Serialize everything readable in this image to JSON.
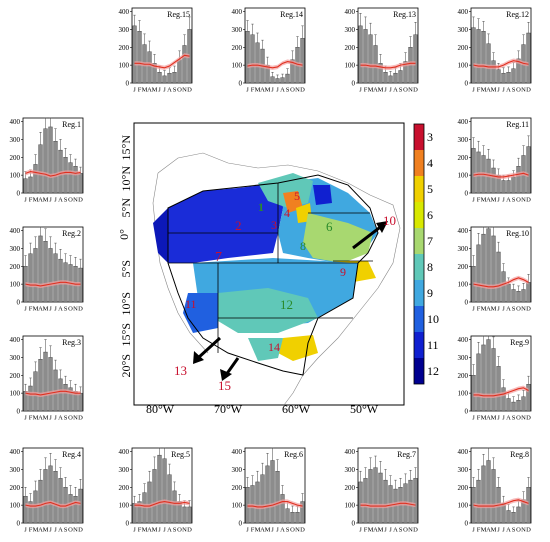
{
  "figure": {
    "axes": {
      "month_ticks": [
        "J",
        "F",
        "M",
        "A",
        "M",
        "J",
        "J",
        "A",
        "S",
        "O",
        "N",
        "D"
      ],
      "y_ticks": [
        "0",
        "100",
        "200",
        "300",
        "400"
      ],
      "ylim": [
        0,
        420
      ]
    },
    "colors": {
      "bar": "#8c8c8c",
      "bar_stroke": "#333333",
      "error": "#444444",
      "line": "#e03020",
      "band": "#f4a0a0"
    },
    "map": {
      "lat_labels": [
        "15°N",
        "10°N",
        "5°N",
        "0°",
        "5°S",
        "10°S",
        "15°S",
        "20°S"
      ],
      "lon_labels": [
        "80°W",
        "70°W",
        "60°W",
        "50°W"
      ],
      "region_numbers": [
        "1",
        "2",
        "3",
        "4",
        "5",
        "6",
        "7",
        "8",
        "9",
        "10",
        "11",
        "12",
        "13",
        "14",
        "15"
      ],
      "colorbar": {
        "labels": [
          "3",
          "4",
          "5",
          "6",
          "7",
          "8",
          "9",
          "10",
          "11",
          "12"
        ],
        "colors": [
          "#c8102e",
          "#f08020",
          "#f0d000",
          "#d8e800",
          "#a8d870",
          "#60c8b8",
          "#40a8e0",
          "#2060e0",
          "#1020d0",
          "#000090"
        ]
      }
    }
  },
  "chart_data": [
    {
      "type": "bar",
      "title": "Reg.15",
      "categories": [
        "J",
        "F",
        "M",
        "A",
        "M",
        "J",
        "J",
        "A",
        "S",
        "O",
        "N",
        "D"
      ],
      "values": [
        320,
        290,
        215,
        175,
        110,
        60,
        40,
        55,
        60,
        130,
        210,
        300
      ],
      "errors": [
        60,
        60,
        60,
        60,
        50,
        35,
        30,
        30,
        35,
        50,
        60,
        70
      ],
      "line": [
        110,
        110,
        105,
        105,
        95,
        90,
        85,
        95,
        115,
        135,
        155,
        150
      ],
      "ylim": [
        0,
        420
      ]
    },
    {
      "type": "bar",
      "title": "Reg.14",
      "categories": [
        "J",
        "F",
        "M",
        "A",
        "M",
        "J",
        "J",
        "A",
        "S",
        "O",
        "N",
        "D"
      ],
      "values": [
        290,
        270,
        225,
        190,
        100,
        35,
        25,
        30,
        50,
        130,
        200,
        250
      ],
      "errors": [
        60,
        60,
        55,
        50,
        45,
        25,
        20,
        20,
        30,
        50,
        60,
        70
      ],
      "line": [
        95,
        100,
        100,
        95,
        90,
        85,
        90,
        110,
        120,
        115,
        105,
        100
      ],
      "ylim": [
        0,
        420
      ]
    },
    {
      "type": "bar",
      "title": "Reg.13",
      "categories": [
        "J",
        "F",
        "M",
        "A",
        "M",
        "J",
        "J",
        "A",
        "S",
        "O",
        "N",
        "D"
      ],
      "values": [
        320,
        300,
        270,
        210,
        110,
        60,
        40,
        55,
        70,
        120,
        200,
        270
      ],
      "errors": [
        70,
        70,
        65,
        60,
        50,
        35,
        25,
        30,
        40,
        50,
        60,
        70
      ],
      "line": [
        100,
        100,
        95,
        95,
        90,
        85,
        85,
        90,
        100,
        105,
        110,
        110
      ],
      "ylim": [
        0,
        420
      ]
    },
    {
      "type": "bar",
      "title": "Reg.12",
      "categories": [
        "J",
        "F",
        "M",
        "A",
        "M",
        "J",
        "J",
        "A",
        "S",
        "O",
        "N",
        "D"
      ],
      "values": [
        310,
        300,
        290,
        220,
        125,
        75,
        55,
        60,
        80,
        135,
        215,
        280
      ],
      "errors": [
        60,
        60,
        55,
        55,
        45,
        35,
        30,
        30,
        35,
        45,
        55,
        60
      ],
      "line": [
        100,
        95,
        95,
        90,
        90,
        90,
        100,
        115,
        125,
        120,
        110,
        105
      ],
      "ylim": [
        0,
        420
      ]
    },
    {
      "type": "bar",
      "title": "Reg.1",
      "categories": [
        "J",
        "F",
        "M",
        "A",
        "M",
        "J",
        "J",
        "A",
        "S",
        "O",
        "N",
        "D"
      ],
      "values": [
        80,
        90,
        160,
        270,
        360,
        370,
        290,
        240,
        200,
        170,
        150,
        110
      ],
      "errors": [
        40,
        40,
        55,
        70,
        80,
        80,
        70,
        60,
        50,
        45,
        40,
        35
      ],
      "line": [
        110,
        120,
        115,
        110,
        105,
        95,
        100,
        110,
        115,
        115,
        110,
        115
      ],
      "ylim": [
        0,
        420
      ]
    },
    {
      "type": "bar",
      "title": "Reg.11",
      "categories": [
        "J",
        "F",
        "M",
        "A",
        "M",
        "J",
        "J",
        "A",
        "S",
        "O",
        "N",
        "D"
      ],
      "values": [
        250,
        230,
        210,
        190,
        140,
        100,
        70,
        70,
        90,
        150,
        210,
        260
      ],
      "errors": [
        60,
        60,
        55,
        55,
        45,
        35,
        30,
        30,
        35,
        45,
        55,
        60
      ],
      "line": [
        100,
        105,
        105,
        100,
        95,
        90,
        90,
        95,
        100,
        105,
        110,
        100
      ],
      "ylim": [
        0,
        420
      ]
    },
    {
      "type": "bar",
      "title": "Reg.2",
      "categories": [
        "J",
        "F",
        "M",
        "A",
        "M",
        "J",
        "J",
        "A",
        "S",
        "O",
        "N",
        "D"
      ],
      "values": [
        200,
        270,
        300,
        370,
        340,
        300,
        270,
        240,
        220,
        210,
        200,
        190
      ],
      "errors": [
        60,
        60,
        65,
        70,
        70,
        65,
        60,
        55,
        50,
        50,
        50,
        50
      ],
      "line": [
        100,
        95,
        95,
        90,
        95,
        100,
        105,
        110,
        110,
        105,
        100,
        100
      ],
      "ylim": [
        0,
        420
      ]
    },
    {
      "type": "bar",
      "title": "Reg.10",
      "categories": [
        "J",
        "F",
        "M",
        "A",
        "M",
        "J",
        "J",
        "A",
        "S",
        "O",
        "N",
        "D"
      ],
      "values": [
        200,
        320,
        380,
        410,
        370,
        280,
        170,
        100,
        70,
        60,
        70,
        110
      ],
      "errors": [
        60,
        65,
        70,
        70,
        65,
        55,
        45,
        35,
        30,
        30,
        35,
        45
      ],
      "line": [
        100,
        95,
        90,
        85,
        85,
        90,
        100,
        110,
        125,
        135,
        125,
        110
      ],
      "ylim": [
        0,
        420
      ]
    },
    {
      "type": "bar",
      "title": "Reg.3",
      "categories": [
        "J",
        "F",
        "M",
        "A",
        "M",
        "J",
        "J",
        "A",
        "S",
        "O",
        "N",
        "D"
      ],
      "values": [
        110,
        140,
        220,
        290,
        330,
        300,
        230,
        180,
        150,
        130,
        110,
        100
      ],
      "errors": [
        40,
        45,
        55,
        65,
        70,
        65,
        55,
        50,
        45,
        40,
        40,
        35
      ],
      "line": [
        100,
        95,
        95,
        90,
        95,
        100,
        105,
        110,
        110,
        105,
        100,
        100
      ],
      "ylim": [
        0,
        420
      ]
    },
    {
      "type": "bar",
      "title": "Reg.9",
      "categories": [
        "J",
        "F",
        "M",
        "A",
        "M",
        "J",
        "J",
        "A",
        "S",
        "O",
        "N",
        "D"
      ],
      "values": [
        200,
        320,
        370,
        400,
        350,
        250,
        130,
        70,
        50,
        60,
        80,
        150
      ],
      "errors": [
        60,
        65,
        70,
        70,
        65,
        55,
        45,
        35,
        30,
        30,
        35,
        45
      ],
      "line": [
        90,
        90,
        85,
        85,
        85,
        90,
        95,
        105,
        115,
        125,
        130,
        115
      ],
      "ylim": [
        0,
        420
      ]
    },
    {
      "type": "bar",
      "title": "Reg.4",
      "categories": [
        "J",
        "F",
        "M",
        "A",
        "M",
        "J",
        "J",
        "A",
        "S",
        "O",
        "N",
        "D"
      ],
      "values": [
        150,
        120,
        180,
        240,
        300,
        320,
        290,
        250,
        200,
        160,
        150,
        190
      ],
      "errors": [
        50,
        45,
        55,
        60,
        65,
        70,
        65,
        60,
        55,
        50,
        50,
        55
      ],
      "line": [
        100,
        95,
        95,
        100,
        110,
        115,
        105,
        95,
        95,
        105,
        115,
        110
      ],
      "ylim": [
        0,
        420
      ]
    },
    {
      "type": "bar",
      "title": "Reg.5",
      "categories": [
        "J",
        "F",
        "M",
        "A",
        "M",
        "J",
        "J",
        "A",
        "S",
        "O",
        "N",
        "D"
      ],
      "values": [
        110,
        120,
        170,
        230,
        300,
        380,
        360,
        270,
        180,
        120,
        90,
        90
      ],
      "errors": [
        40,
        40,
        50,
        60,
        70,
        75,
        70,
        60,
        50,
        40,
        35,
        35
      ],
      "line": [
        100,
        100,
        95,
        95,
        105,
        115,
        120,
        115,
        110,
        110,
        115,
        110
      ],
      "ylim": [
        0,
        420
      ]
    },
    {
      "type": "bar",
      "title": "Reg.6",
      "categories": [
        "J",
        "F",
        "M",
        "A",
        "M",
        "J",
        "J",
        "A",
        "S",
        "O",
        "N",
        "D"
      ],
      "values": [
        200,
        210,
        230,
        270,
        320,
        350,
        290,
        160,
        80,
        60,
        60,
        120
      ],
      "errors": [
        55,
        55,
        60,
        65,
        70,
        75,
        65,
        50,
        40,
        35,
        35,
        45
      ],
      "line": [
        95,
        95,
        90,
        90,
        95,
        100,
        110,
        120,
        120,
        110,
        100,
        95
      ],
      "ylim": [
        0,
        420
      ]
    },
    {
      "type": "bar",
      "title": "Reg.7",
      "categories": [
        "J",
        "F",
        "M",
        "A",
        "M",
        "J",
        "J",
        "A",
        "S",
        "O",
        "N",
        "D"
      ],
      "values": [
        230,
        250,
        300,
        310,
        280,
        240,
        210,
        190,
        200,
        220,
        240,
        250
      ],
      "errors": [
        60,
        60,
        65,
        65,
        65,
        60,
        55,
        50,
        50,
        55,
        55,
        60
      ],
      "line": [
        100,
        100,
        95,
        95,
        95,
        95,
        100,
        105,
        110,
        110,
        105,
        100
      ],
      "ylim": [
        0,
        420
      ]
    },
    {
      "type": "bar",
      "title": "Reg.8",
      "categories": [
        "J",
        "F",
        "M",
        "A",
        "M",
        "J",
        "J",
        "A",
        "S",
        "O",
        "N",
        "D"
      ],
      "values": [
        200,
        240,
        320,
        350,
        300,
        200,
        110,
        70,
        60,
        90,
        130,
        200
      ],
      "errors": [
        55,
        60,
        65,
        70,
        65,
        55,
        40,
        35,
        30,
        35,
        45,
        55
      ],
      "line": [
        100,
        95,
        95,
        95,
        95,
        100,
        105,
        115,
        125,
        130,
        120,
        110
      ],
      "ylim": [
        0,
        420
      ]
    }
  ]
}
